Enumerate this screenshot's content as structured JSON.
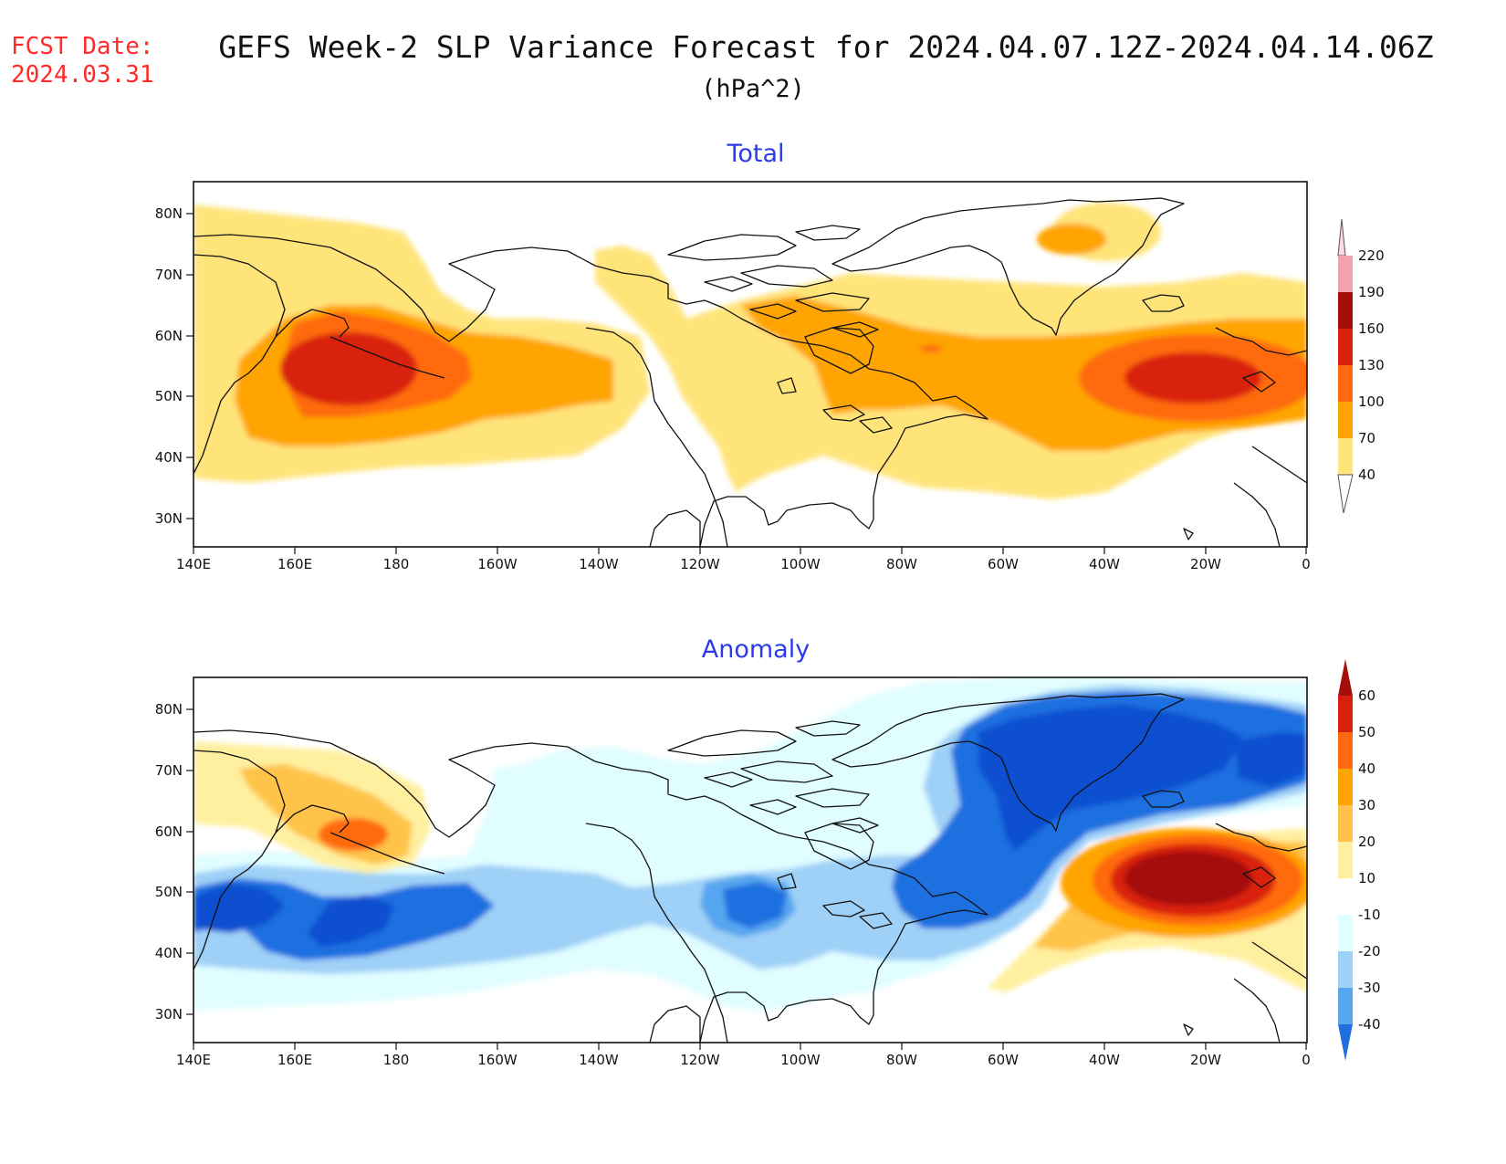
{
  "fcst_date_label": "FCST Date:",
  "fcst_date": "2024.03.31",
  "title": "GEFS Week-2 SLP Variance Forecast for 2024.04.07.12Z-2024.04.14.06Z",
  "units": "(hPa^2)",
  "panels": [
    {
      "title": "Total",
      "colorbar_labels": [
        "220",
        "190",
        "160",
        "130",
        "100",
        "70",
        "40"
      ],
      "colorbar_colors": [
        "#ffd9e6",
        "#f0a3a8",
        "#a50f0a",
        "#d9200f",
        "#ff6a10",
        "#ffa400",
        "#ffe47a"
      ]
    },
    {
      "title": "Anomaly",
      "colorbar_labels": [
        "60",
        "50",
        "40",
        "30",
        "20",
        "10",
        "-10",
        "-20",
        "-30",
        "-40"
      ],
      "colorbar_colors": [
        "#a50f0a",
        "#d9200f",
        "#ff6a10",
        "#ffa400",
        "#ffc34a",
        "#fff0a0",
        "#ffffff",
        "#e0fdff",
        "#9fd0f7",
        "#57a6ef",
        "#1f6fe0",
        "#0b4fd0"
      ]
    }
  ],
  "lat_labels": [
    "80N",
    "70N",
    "60N",
    "50N",
    "40N",
    "30N"
  ],
  "lon_labels": [
    "140E",
    "160E",
    "180",
    "160W",
    "140W",
    "120W",
    "100W",
    "80W",
    "60W",
    "40W",
    "20W",
    "0"
  ],
  "colors": {
    "title_red": "#ff2a2a",
    "panel_title_blue": "#2b3be8",
    "coastline": "#111111"
  }
}
